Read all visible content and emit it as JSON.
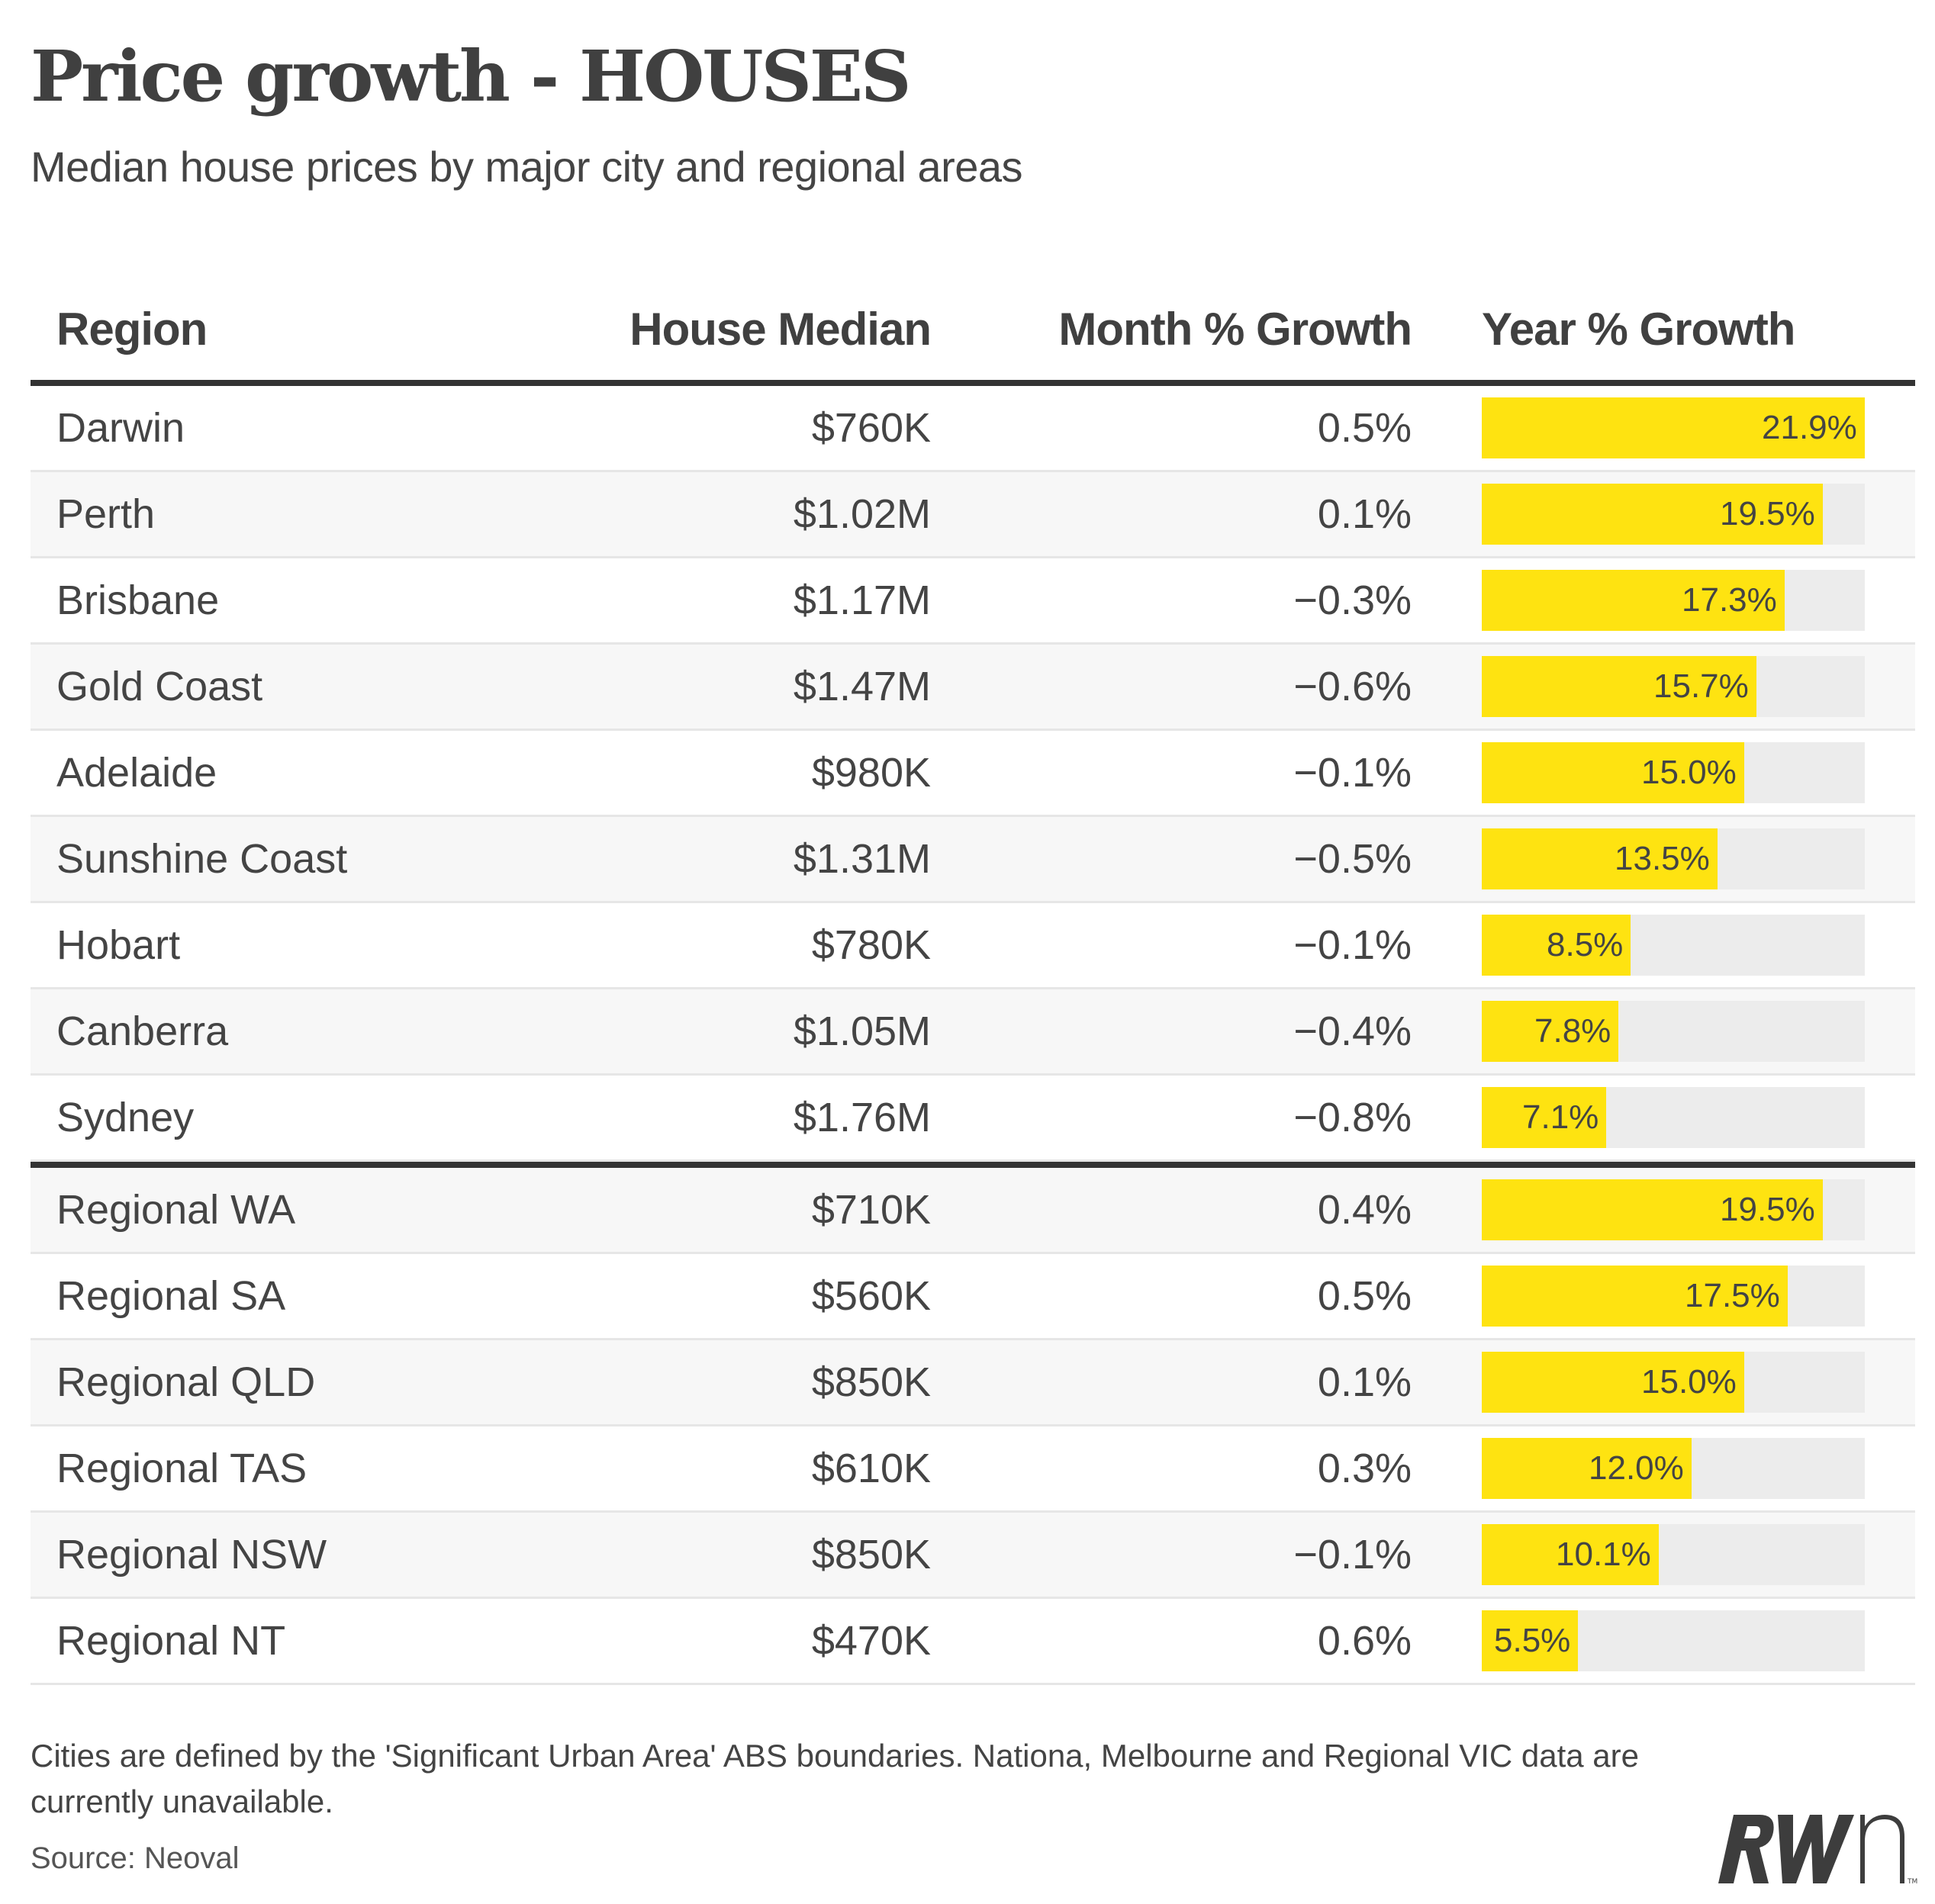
{
  "header": {
    "title": "Price growth - HOUSES",
    "subtitle": "Median house prices by major city and regional areas"
  },
  "table": {
    "columns": [
      "Region",
      "House Median",
      "Month % Growth",
      "Year % Growth"
    ]
  },
  "colors": {
    "bar_fill": "#fee311",
    "bar_track": "#ececec",
    "rule": "#333333",
    "text": "#444444"
  },
  "chart_data": {
    "type": "table",
    "title": "Price growth - HOUSES",
    "subtitle": "Median house prices by major city and regional areas",
    "columns": [
      "Region",
      "House Median",
      "Month % Growth",
      "Year % Growth"
    ],
    "bar_column": "Year % Growth",
    "bar_max": 21.9,
    "groups": [
      {
        "name": "cities",
        "rows": [
          {
            "region": "Darwin",
            "median": "$760K",
            "month": "0.5%",
            "year": 21.9,
            "year_label": "21.9%"
          },
          {
            "region": "Perth",
            "median": "$1.02M",
            "month": "0.1%",
            "year": 19.5,
            "year_label": "19.5%"
          },
          {
            "region": "Brisbane",
            "median": "$1.17M",
            "month": "−0.3%",
            "year": 17.3,
            "year_label": "17.3%"
          },
          {
            "region": "Gold Coast",
            "median": "$1.47M",
            "month": "−0.6%",
            "year": 15.7,
            "year_label": "15.7%"
          },
          {
            "region": "Adelaide",
            "median": "$980K",
            "month": "−0.1%",
            "year": 15.0,
            "year_label": "15.0%"
          },
          {
            "region": "Sunshine Coast",
            "median": "$1.31M",
            "month": "−0.5%",
            "year": 13.5,
            "year_label": "13.5%"
          },
          {
            "region": "Hobart",
            "median": "$780K",
            "month": "−0.1%",
            "year": 8.5,
            "year_label": "8.5%"
          },
          {
            "region": "Canberra",
            "median": "$1.05M",
            "month": "−0.4%",
            "year": 7.8,
            "year_label": "7.8%"
          },
          {
            "region": "Sydney",
            "median": "$1.76M",
            "month": "−0.8%",
            "year": 7.1,
            "year_label": "7.1%"
          }
        ]
      },
      {
        "name": "regional",
        "rows": [
          {
            "region": "Regional WA",
            "median": "$710K",
            "month": "0.4%",
            "year": 19.5,
            "year_label": "19.5%"
          },
          {
            "region": "Regional SA",
            "median": "$560K",
            "month": "0.5%",
            "year": 17.5,
            "year_label": "17.5%"
          },
          {
            "region": "Regional QLD",
            "median": "$850K",
            "month": "0.1%",
            "year": 15.0,
            "year_label": "15.0%"
          },
          {
            "region": "Regional TAS",
            "median": "$610K",
            "month": "0.3%",
            "year": 12.0,
            "year_label": "12.0%"
          },
          {
            "region": "Regional NSW",
            "median": "$850K",
            "month": "−0.1%",
            "year": 10.1,
            "year_label": "10.1%"
          },
          {
            "region": "Regional NT",
            "median": "$470K",
            "month": "0.6%",
            "year": 5.5,
            "year_label": "5.5%"
          }
        ]
      }
    ]
  },
  "footer": {
    "note": "Cities are defined by the 'Significant Urban Area' ABS boundaries. Nationa, Melbourne and Regional VIC data are currently unavailable.",
    "source": "Source: Neoval",
    "logo_text": "RWn",
    "logo_tm": "TM"
  }
}
